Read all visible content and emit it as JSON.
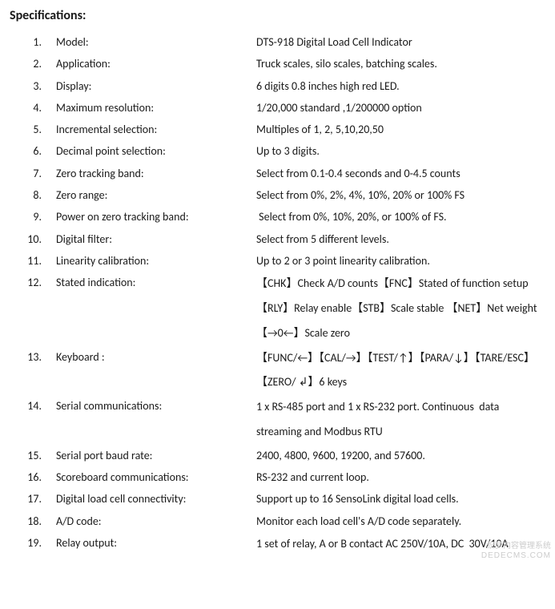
{
  "title": "Specifications:",
  "rows": [
    {
      "num": "1.",
      "label": "Model:",
      "value": "DTS-918 Digital Load Cell Indicator"
    },
    {
      "num": "2.",
      "label": "Application:",
      "value": "Truck scales, silo scales, batching scales."
    },
    {
      "num": "3.",
      "label": "Display:",
      "value": "6 digits 0.8 inches high red LED."
    },
    {
      "num": "4.",
      "label": "Maximum resolution:",
      "value": "1/20,000 standard ,1/200000 option"
    },
    {
      "num": "5.",
      "label": "Incremental selection:",
      "value": "Multiples of 1, 2, 5,10,20,50"
    },
    {
      "num": "6.",
      "label": "Decimal point selection:",
      "value": "Up to 3 digits."
    },
    {
      "num": "7.",
      "label": "Zero tracking band:",
      "value": "Select from 0.1-0.4 seconds and 0-4.5 counts"
    },
    {
      "num": "8.",
      "label": "Zero range:",
      "value": "Select from 0%, 2%, 4%, 10%, 20% or 100% FS"
    },
    {
      "num": "9.",
      "label": "Power on zero tracking band:",
      "value": " Select from 0%, 10%, 20%, or 100% of FS."
    },
    {
      "num": "10.",
      "label": "Digital filter:",
      "value": "Select from 5 different levels."
    },
    {
      "num": "11.",
      "label": "Linearity calibration:",
      "value": "Up to 2 or 3 point linearity calibration."
    },
    {
      "num": "12.",
      "label": "Stated indication:",
      "value": "【CHK】Check A/D counts【FNC】Stated of function setup【RLY】Relay enable【STB】Scale stable 【NET】Net weight【→0←】Scale zero"
    },
    {
      "num": "13.",
      "label": "Keyboard :",
      "value": "【FUNC/←】【CAL/→】【TEST/↑】【PARA/↓】【TARE/ESC】【ZERO/ ↲】6 keys"
    },
    {
      "num": "14.",
      "label": "Serial communications:",
      "value": "1 x RS-485 port and 1 x RS-232 port. Continuous  data streaming and Modbus RTU"
    },
    {
      "num": "15.",
      "label": "Serial port baud rate:",
      "value": "2400, 4800, 9600, 19200, and 57600."
    },
    {
      "num": "16.",
      "label": "Scoreboard communications:",
      "value": "RS-232 and current loop."
    },
    {
      "num": "17.",
      "label": "Digital load cell connectivity:",
      "value": "Support up to 16 SensoLink digital load cells."
    },
    {
      "num": "18.",
      "label": "A/D code:",
      "value": "Monitor each load cell's A/D code separately."
    },
    {
      "num": "19.",
      "label": "Relay output:",
      "value": "1 set of relay, A or B contact AC 250V/10A, DC  30V/10A"
    }
  ],
  "watermark": {
    "line1": "织梦内容管理系统",
    "line2": "DEDECMS.COM"
  }
}
